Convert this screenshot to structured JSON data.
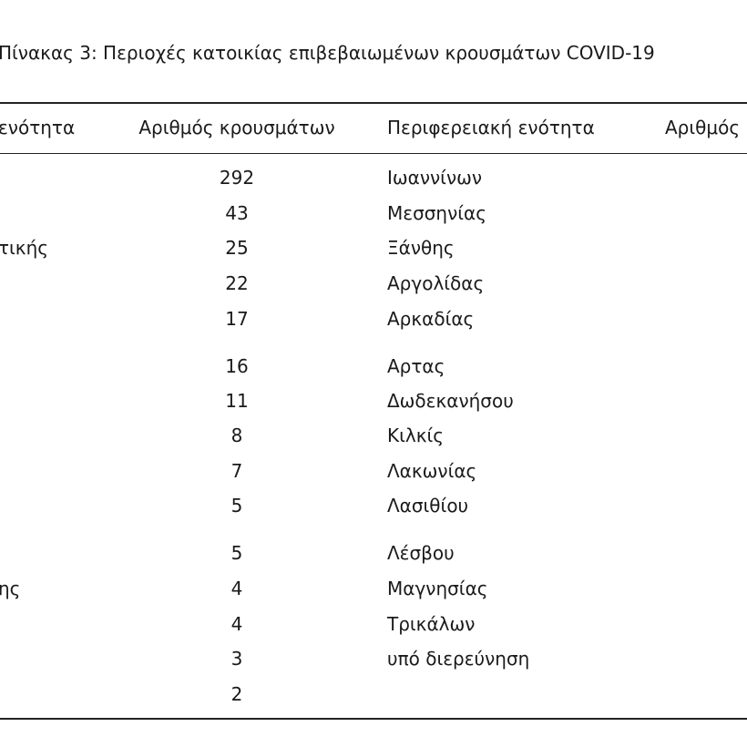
{
  "title": "Πίνακας 3: Περιοχές κατοικίας επιβεβαιωμένων κρουσμάτων COVID-19",
  "table": {
    "headers": [
      "ενότητα",
      "Αριθμός κρουσμάτων",
      "Περιφερειακή ενότητα",
      "Αριθμός"
    ],
    "rows": [
      [
        null,
        292,
        "Ιωαννίνων"
      ],
      [
        null,
        43,
        "Μεσσηνίας"
      ],
      [
        "τικής",
        25,
        "Ξάνθης"
      ],
      [
        null,
        22,
        "Αργολίδας"
      ],
      [
        null,
        17,
        "Αρκαδίας"
      ],
      [
        null,
        16,
        "Αρτας"
      ],
      [
        null,
        11,
        "Δωδεκανήσου"
      ],
      [
        null,
        8,
        "Κιλκίς"
      ],
      [
        null,
        7,
        "Λακωνίας"
      ],
      [
        null,
        5,
        "Λασιθίου"
      ],
      [
        null,
        5,
        "Λέσβου"
      ],
      [
        "ης",
        4,
        "Μαγνησίας"
      ],
      [
        null,
        4,
        "Τρικάλων"
      ],
      [
        null,
        3,
        "υπό διερεύνηση"
      ],
      [
        null,
        2,
        null
      ]
    ]
  }
}
